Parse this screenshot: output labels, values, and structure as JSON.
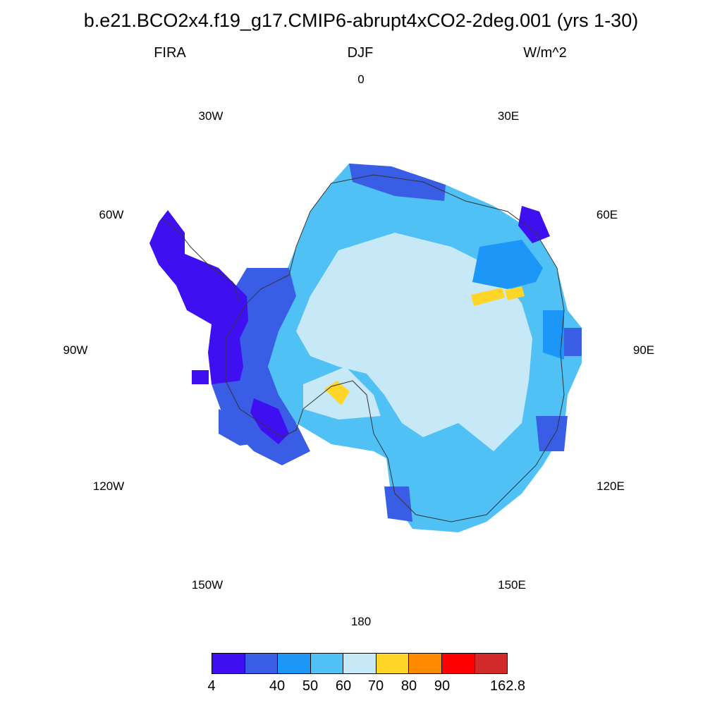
{
  "title": "b.e21.BCO2x4.f19_g17.CMIP6-abrupt4xCO2-2deg.001 (yrs 1-30)",
  "variable": "FIRA",
  "season": "DJF",
  "units": "W/m^2",
  "longitude_labels": {
    "lon_0": "0",
    "lon_30e": "30E",
    "lon_60e": "60E",
    "lon_90e": "90E",
    "lon_120e": "120E",
    "lon_150e": "150E",
    "lon_180": "180",
    "lon_150w": "150W",
    "lon_120w": "120W",
    "lon_90w": "90W",
    "lon_60w": "60W",
    "lon_30w": "30W"
  },
  "colorbar": {
    "colors": [
      "#3f0ff2",
      "#3a5de6",
      "#1c97f7",
      "#50c1f4",
      "#c6e8f7",
      "#ffd528",
      "#ff8a00",
      "#ff0000",
      "#d22a2a"
    ],
    "labels": {
      "l_min": "4",
      "l_40": "40",
      "l_50": "50",
      "l_60": "60",
      "l_70": "70",
      "l_80": "80",
      "l_90": "90",
      "l_max": "162.8"
    }
  },
  "chart_data": {
    "type": "polar-stereographic field map (Antarctica)",
    "variable": "FIRA",
    "season": "DJF",
    "units": "W/m^2",
    "levels": [
      4,
      40,
      50,
      60,
      70,
      80,
      90,
      162.8
    ],
    "summary": {
      "interior_plateau": "60-70",
      "coastal_east_antarctica": "50-60",
      "antarctic_peninsula_and_west_coast": "4-40",
      "isolated_cells_near_70E_and_ross_ice_shelf": "70-80"
    }
  }
}
